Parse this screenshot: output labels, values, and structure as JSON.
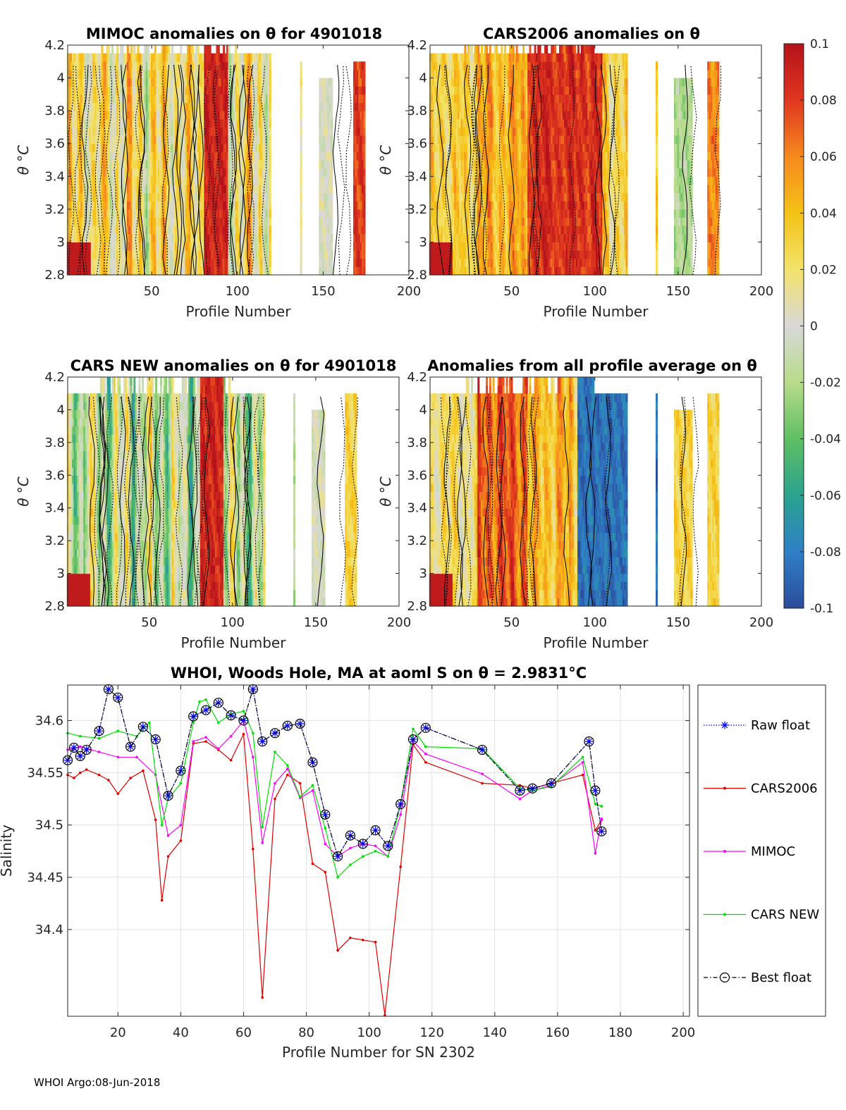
{
  "footer": "WHOI Argo:08-Jun-2018",
  "chart_data": [
    {
      "type": "heatmap",
      "title": "MIMOC anomalies on θ  for 4901018",
      "xlabel": "Profile Number",
      "ylabel": "θ °C",
      "xlim": [
        1,
        200
      ],
      "ylim": [
        2.8,
        4.2
      ],
      "xticks": [
        "50",
        "100",
        "150",
        "200"
      ],
      "yticks": [
        "2.8",
        "3",
        "3.2",
        "3.4",
        "3.6",
        "3.8",
        "4",
        "4.2"
      ],
      "contours": true
    },
    {
      "type": "heatmap",
      "title": "CARS2006 anomalies on θ",
      "xlabel": "Profile Number",
      "ylabel": "θ °C",
      "xlim": [
        1,
        200
      ],
      "ylim": [
        2.8,
        4.2
      ],
      "xticks": [
        "50",
        "100",
        "150",
        "200"
      ],
      "yticks": [
        "2.8",
        "3",
        "3.2",
        "3.4",
        "3.6",
        "3.8",
        "4",
        "4.2"
      ],
      "contours": true
    },
    {
      "type": "heatmap",
      "title": "CARS NEW anomalies on θ for 4901018",
      "xlabel": "Profile Number",
      "ylabel": "θ °C",
      "xlim": [
        1,
        200
      ],
      "ylim": [
        2.8,
        4.2
      ],
      "xticks": [
        "50",
        "100",
        "150",
        "200"
      ],
      "yticks": [
        "2.8",
        "3",
        "3.2",
        "3.4",
        "3.6",
        "3.8",
        "4",
        "4.2"
      ],
      "contours": true
    },
    {
      "type": "heatmap",
      "title": "Anomalies from all profile average on θ",
      "xlabel": "Profile Number",
      "ylabel": "θ °C",
      "xlim": [
        1,
        200
      ],
      "ylim": [
        2.8,
        4.2
      ],
      "xticks": [
        "50",
        "100",
        "150",
        "200"
      ],
      "yticks": [
        "2.8",
        "3",
        "3.2",
        "3.4",
        "3.6",
        "3.8",
        "4",
        "4.2"
      ],
      "contours": true
    },
    {
      "type": "colorbar",
      "range": [
        -0.1,
        0.1
      ],
      "ticks": [
        "0.1",
        "0.08",
        "0.06",
        "0.04",
        "0.02",
        "0",
        "-0.02",
        "-0.04",
        "-0.06",
        "-0.08",
        "-0.1"
      ],
      "colors": [
        "#2b4c9b",
        "#2f7fc6",
        "#2aa38f",
        "#5fbf63",
        "#b8dc8a",
        "#d8d8d8",
        "#f3e36b",
        "#f5c216",
        "#f6891f",
        "#e0371f",
        "#b5121b"
      ]
    },
    {
      "type": "line",
      "title": "WHOI, Woods Hole, MA at aoml S on θ = 2.9831°C",
      "xlabel": "Profile Number for SN 2302",
      "ylabel": "Salinity",
      "xlim": [
        4,
        202
      ],
      "ylim": [
        34.317,
        34.634
      ],
      "xticks": [
        "20",
        "40",
        "60",
        "80",
        "100",
        "120",
        "140",
        "160",
        "180",
        "200"
      ],
      "yticks": [
        "34.4",
        "34.45",
        "34.5",
        "34.55",
        "34.6"
      ],
      "legend_position": "outside-right",
      "series": [
        {
          "name": "Raw float",
          "color": "#0000ff",
          "style": "dotted-star",
          "x": [
            4,
            6,
            8,
            10,
            14,
            17,
            20,
            24,
            28,
            32,
            36,
            40,
            44,
            48,
            52,
            56,
            60,
            63,
            66,
            70,
            74,
            78,
            82,
            86,
            90,
            94,
            98,
            102,
            106,
            110,
            114,
            118,
            136,
            148,
            152,
            158,
            170,
            172,
            174
          ],
          "y": [
            34.562,
            34.574,
            34.566,
            34.572,
            34.59,
            34.63,
            34.622,
            34.575,
            34.594,
            34.582,
            34.528,
            34.552,
            34.604,
            34.61,
            34.617,
            34.605,
            34.6,
            34.63,
            34.58,
            34.588,
            34.595,
            34.597,
            34.56,
            34.51,
            34.47,
            34.49,
            34.482,
            34.495,
            34.48,
            34.52,
            34.582,
            34.593,
            34.572,
            34.533,
            34.535,
            34.54,
            34.58,
            34.533,
            34.494
          ]
        },
        {
          "name": "CARS2006",
          "color": "#e00000",
          "style": "solid-dot",
          "x": [
            4,
            6,
            8,
            10,
            14,
            17,
            20,
            24,
            28,
            32,
            34,
            36,
            40,
            44,
            48,
            52,
            56,
            60,
            63,
            66,
            70,
            74,
            78,
            82,
            86,
            90,
            94,
            98,
            102,
            105,
            110,
            114,
            118,
            136,
            148,
            152,
            158,
            168,
            172,
            174
          ],
          "y": [
            34.548,
            34.545,
            34.55,
            34.553,
            34.548,
            34.543,
            34.53,
            34.545,
            34.552,
            34.505,
            34.428,
            34.47,
            34.485,
            34.578,
            34.58,
            34.572,
            34.562,
            34.587,
            34.477,
            34.335,
            34.525,
            34.548,
            34.54,
            34.463,
            34.455,
            34.38,
            34.392,
            34.39,
            34.388,
            34.318,
            34.46,
            34.577,
            34.56,
            34.54,
            34.538,
            34.535,
            34.54,
            34.548,
            34.495,
            34.505
          ]
        },
        {
          "name": "MIMOC",
          "color": "#ff00ff",
          "style": "solid-dot",
          "x": [
            4,
            8,
            14,
            20,
            26,
            32,
            36,
            40,
            44,
            48,
            52,
            56,
            60,
            63,
            66,
            70,
            74,
            78,
            82,
            86,
            90,
            94,
            98,
            102,
            106,
            110,
            114,
            118,
            136,
            148,
            152,
            158,
            168,
            172,
            174
          ],
          "y": [
            34.572,
            34.575,
            34.57,
            34.565,
            34.565,
            34.548,
            34.49,
            34.5,
            34.58,
            34.584,
            34.573,
            34.585,
            34.6,
            34.565,
            34.483,
            34.54,
            34.554,
            34.526,
            34.533,
            34.482,
            34.47,
            34.478,
            34.482,
            34.48,
            34.47,
            34.51,
            34.58,
            34.568,
            34.549,
            34.525,
            34.533,
            34.538,
            34.56,
            34.473,
            34.506
          ]
        },
        {
          "name": "CARS NEW",
          "color": "#00e000",
          "style": "solid-dot",
          "x": [
            4,
            8,
            14,
            20,
            26,
            30,
            34,
            36,
            40,
            44,
            46,
            48,
            52,
            56,
            60,
            63,
            66,
            70,
            74,
            78,
            82,
            86,
            90,
            94,
            98,
            102,
            106,
            110,
            114,
            118,
            136,
            148,
            152,
            158,
            168,
            172,
            174
          ],
          "y": [
            34.588,
            34.585,
            34.583,
            34.59,
            34.585,
            34.598,
            34.5,
            34.525,
            34.54,
            34.598,
            34.618,
            34.62,
            34.598,
            34.606,
            34.609,
            34.588,
            34.498,
            34.57,
            34.557,
            34.527,
            34.538,
            34.497,
            34.45,
            34.462,
            34.47,
            34.475,
            34.47,
            34.52,
            34.592,
            34.575,
            34.573,
            34.535,
            34.533,
            34.537,
            34.565,
            34.52,
            34.518
          ]
        },
        {
          "name": "Best float",
          "color": "#000000",
          "style": "dashdot-circle",
          "x": [
            4,
            6,
            8,
            10,
            14,
            17,
            20,
            24,
            28,
            32,
            36,
            40,
            44,
            48,
            52,
            56,
            60,
            63,
            66,
            70,
            74,
            78,
            82,
            86,
            90,
            94,
            98,
            102,
            106,
            110,
            114,
            118,
            136,
            148,
            152,
            158,
            170,
            172,
            174
          ],
          "y": [
            34.562,
            34.574,
            34.566,
            34.572,
            34.59,
            34.63,
            34.622,
            34.575,
            34.594,
            34.582,
            34.528,
            34.552,
            34.604,
            34.61,
            34.617,
            34.605,
            34.6,
            34.63,
            34.58,
            34.588,
            34.595,
            34.597,
            34.56,
            34.51,
            34.47,
            34.49,
            34.482,
            34.495,
            34.48,
            34.52,
            34.582,
            34.593,
            34.572,
            34.533,
            34.535,
            34.54,
            34.58,
            34.533,
            34.494
          ]
        }
      ]
    }
  ]
}
